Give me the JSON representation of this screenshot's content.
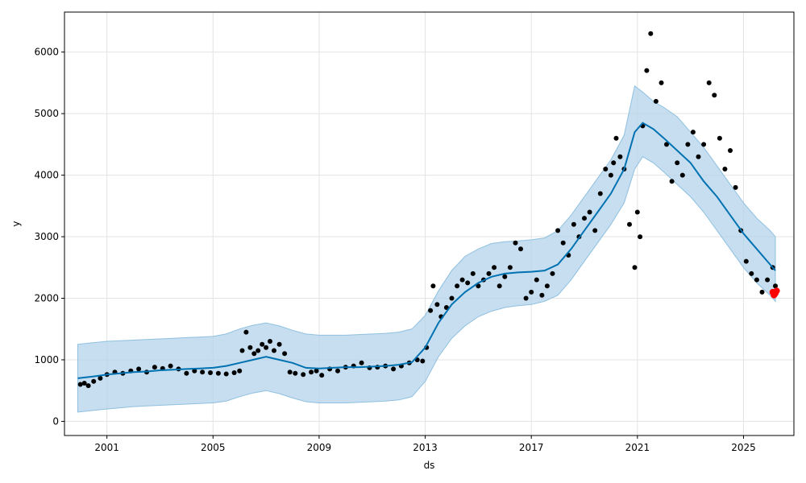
{
  "chart_data": {
    "type": "scatter",
    "title": "",
    "xlabel": "ds",
    "ylabel": "y",
    "grid": true,
    "xlim": [
      1999.4,
      2026.9
    ],
    "ylim": [
      -230,
      6650
    ],
    "x_ticks": [
      2001,
      2005,
      2009,
      2013,
      2017,
      2021,
      2025
    ],
    "y_ticks": [
      0,
      1000,
      2000,
      3000,
      4000,
      5000,
      6000
    ],
    "colors": {
      "observed": "#000000",
      "forecast_line": "#0072B2",
      "uncertainty_fill": "#b3d3ea",
      "uncertainty_edge": "#8fc0e0",
      "forecast_points": "#ff0000",
      "grid": "#e3e3e3"
    },
    "series": [
      {
        "name": "observed",
        "kind": "scatter",
        "x": [
          2000.0,
          2000.15,
          2000.3,
          2000.5,
          2000.75,
          2001.0,
          2001.3,
          2001.6,
          2001.9,
          2002.2,
          2002.5,
          2002.8,
          2003.1,
          2003.4,
          2003.7,
          2004.0,
          2004.3,
          2004.6,
          2004.9,
          2005.2,
          2005.5,
          2005.8,
          2006.0,
          2006.1,
          2006.25,
          2006.4,
          2006.55,
          2006.7,
          2006.85,
          2007.0,
          2007.15,
          2007.3,
          2007.5,
          2007.7,
          2007.9,
          2008.1,
          2008.4,
          2008.7,
          2008.9,
          2009.1,
          2009.4,
          2009.7,
          2010.0,
          2010.3,
          2010.6,
          2010.9,
          2011.2,
          2011.5,
          2011.8,
          2012.1,
          2012.4,
          2012.7,
          2012.9,
          2013.05,
          2013.2,
          2013.3,
          2013.45,
          2013.6,
          2013.8,
          2014.0,
          2014.2,
          2014.4,
          2014.6,
          2014.8,
          2015.0,
          2015.2,
          2015.4,
          2015.6,
          2015.8,
          2016.0,
          2016.2,
          2016.4,
          2016.6,
          2016.8,
          2017.0,
          2017.2,
          2017.4,
          2017.6,
          2017.8,
          2018.0,
          2018.2,
          2018.4,
          2018.6,
          2018.8,
          2019.0,
          2019.2,
          2019.4,
          2019.6,
          2019.8,
          2020.0,
          2020.1,
          2020.2,
          2020.35,
          2020.5,
          2020.7,
          2020.9,
          2021.0,
          2021.1,
          2021.2,
          2021.35,
          2021.5,
          2021.7,
          2021.9,
          2022.1,
          2022.3,
          2022.5,
          2022.7,
          2022.9,
          2023.1,
          2023.3,
          2023.5,
          2023.7,
          2023.9,
          2024.1,
          2024.3,
          2024.5,
          2024.7,
          2024.9,
          2025.1,
          2025.3,
          2025.5,
          2025.7,
          2025.9,
          2026.1,
          2026.2
        ],
        "y": [
          600,
          620,
          580,
          650,
          700,
          760,
          800,
          780,
          820,
          850,
          800,
          880,
          860,
          900,
          850,
          780,
          820,
          800,
          790,
          780,
          770,
          790,
          820,
          1150,
          1450,
          1200,
          1100,
          1150,
          1250,
          1200,
          1300,
          1150,
          1250,
          1100,
          800,
          780,
          760,
          800,
          820,
          750,
          850,
          820,
          880,
          900,
          950,
          870,
          880,
          900,
          850,
          900,
          950,
          1000,
          980,
          1200,
          1800,
          2200,
          1900,
          1700,
          1850,
          2000,
          2200,
          2300,
          2250,
          2400,
          2200,
          2300,
          2400,
          2500,
          2200,
          2350,
          2500,
          2900,
          2800,
          2000,
          2100,
          2300,
          2050,
          2200,
          2400,
          3100,
          2900,
          2700,
          3200,
          3000,
          3300,
          3400,
          3100,
          3700,
          4100,
          4000,
          4200,
          4600,
          4300,
          4100,
          3200,
          2500,
          3400,
          3000,
          4800,
          5700,
          6300,
          5200,
          5500,
          4500,
          3900,
          4200,
          4000,
          4500,
          4700,
          4300,
          4500,
          5500,
          5300,
          4600,
          4100,
          4400,
          3800,
          3100,
          2600,
          2400,
          2300,
          2100,
          2300,
          2500,
          2200
        ],
        "color": "#000000"
      },
      {
        "name": "trend",
        "kind": "line",
        "x": [
          1999.9,
          2000.5,
          2001.0,
          2001.5,
          2002.0,
          2002.5,
          2003.0,
          2003.5,
          2004.0,
          2004.5,
          2005.0,
          2005.5,
          2006.0,
          2006.5,
          2007.0,
          2007.5,
          2008.0,
          2008.5,
          2009.0,
          2009.5,
          2010.0,
          2010.5,
          2011.0,
          2011.5,
          2012.0,
          2012.5,
          2013.0,
          2013.5,
          2014.0,
          2014.5,
          2015.0,
          2015.5,
          2016.0,
          2016.5,
          2017.0,
          2017.5,
          2018.0,
          2018.5,
          2019.0,
          2019.5,
          2020.0,
          2020.5,
          2020.9,
          2021.2,
          2021.6,
          2022.0,
          2022.5,
          2023.0,
          2023.5,
          2024.0,
          2024.5,
          2025.0,
          2025.5,
          2026.0,
          2026.2
        ],
        "y": [
          700,
          730,
          760,
          780,
          800,
          810,
          830,
          840,
          850,
          860,
          870,
          900,
          950,
          1000,
          1050,
          1000,
          950,
          870,
          860,
          870,
          880,
          880,
          890,
          900,
          920,
          960,
          1200,
          1600,
          1900,
          2100,
          2250,
          2350,
          2400,
          2420,
          2430,
          2450,
          2550,
          2800,
          3100,
          3400,
          3700,
          4100,
          4700,
          4850,
          4750,
          4600,
          4400,
          4200,
          3900,
          3650,
          3350,
          3050,
          2800,
          2550,
          2450
        ],
        "color": "#0072B2"
      },
      {
        "name": "uncertainty_upper",
        "kind": "band",
        "x": [
          1999.9,
          2000.5,
          2001.0,
          2001.5,
          2002.0,
          2002.5,
          2003.0,
          2003.5,
          2004.0,
          2004.5,
          2005.0,
          2005.5,
          2006.0,
          2006.5,
          2007.0,
          2007.5,
          2008.0,
          2008.5,
          2009.0,
          2009.5,
          2010.0,
          2010.5,
          2011.0,
          2011.5,
          2012.0,
          2012.5,
          2013.0,
          2013.5,
          2014.0,
          2014.5,
          2015.0,
          2015.5,
          2016.0,
          2016.5,
          2017.0,
          2017.5,
          2018.0,
          2018.5,
          2019.0,
          2019.5,
          2020.0,
          2020.5,
          2020.9,
          2021.2,
          2021.6,
          2022.0,
          2022.5,
          2023.0,
          2023.5,
          2024.0,
          2024.5,
          2025.0,
          2025.5,
          2026.0,
          2026.2
        ],
        "y": [
          1250,
          1280,
          1300,
          1310,
          1320,
          1330,
          1340,
          1350,
          1360,
          1370,
          1380,
          1420,
          1500,
          1560,
          1600,
          1550,
          1480,
          1420,
          1400,
          1400,
          1400,
          1410,
          1420,
          1430,
          1450,
          1500,
          1720,
          2120,
          2450,
          2680,
          2800,
          2890,
          2920,
          2930,
          2950,
          2980,
          3100,
          3350,
          3650,
          3950,
          4250,
          4650,
          5450,
          5350,
          5200,
          5100,
          4950,
          4700,
          4450,
          4150,
          3850,
          3550,
          3300,
          3100,
          3000
        ],
        "color": "#b3d3ea"
      },
      {
        "name": "uncertainty_lower",
        "kind": "band",
        "x": [
          1999.9,
          2000.5,
          2001.0,
          2001.5,
          2002.0,
          2002.5,
          2003.0,
          2003.5,
          2004.0,
          2004.5,
          2005.0,
          2005.5,
          2006.0,
          2006.5,
          2007.0,
          2007.5,
          2008.0,
          2008.5,
          2009.0,
          2009.5,
          2010.0,
          2010.5,
          2011.0,
          2011.5,
          2012.0,
          2012.5,
          2013.0,
          2013.5,
          2014.0,
          2014.5,
          2015.0,
          2015.5,
          2016.0,
          2016.5,
          2017.0,
          2017.5,
          2018.0,
          2018.5,
          2019.0,
          2019.5,
          2020.0,
          2020.5,
          2020.9,
          2021.2,
          2021.6,
          2022.0,
          2022.5,
          2023.0,
          2023.5,
          2024.0,
          2024.5,
          2025.0,
          2025.5,
          2026.0,
          2026.2
        ],
        "y": [
          150,
          180,
          200,
          220,
          240,
          250,
          260,
          270,
          280,
          290,
          300,
          330,
          400,
          460,
          500,
          450,
          380,
          320,
          300,
          300,
          300,
          310,
          320,
          330,
          350,
          400,
          650,
          1050,
          1350,
          1550,
          1700,
          1790,
          1850,
          1880,
          1900,
          1950,
          2050,
          2300,
          2600,
          2900,
          3200,
          3550,
          4100,
          4300,
          4200,
          4050,
          3850,
          3650,
          3400,
          3100,
          2800,
          2500,
          2250,
          2050,
          1950
        ],
        "color": "#b3d3ea"
      },
      {
        "name": "forecast",
        "kind": "scatter",
        "x": [
          2026.1,
          2026.15,
          2026.2,
          2026.25
        ],
        "y": [
          2100,
          2050,
          2080,
          2120
        ],
        "color": "#ff0000"
      }
    ]
  }
}
